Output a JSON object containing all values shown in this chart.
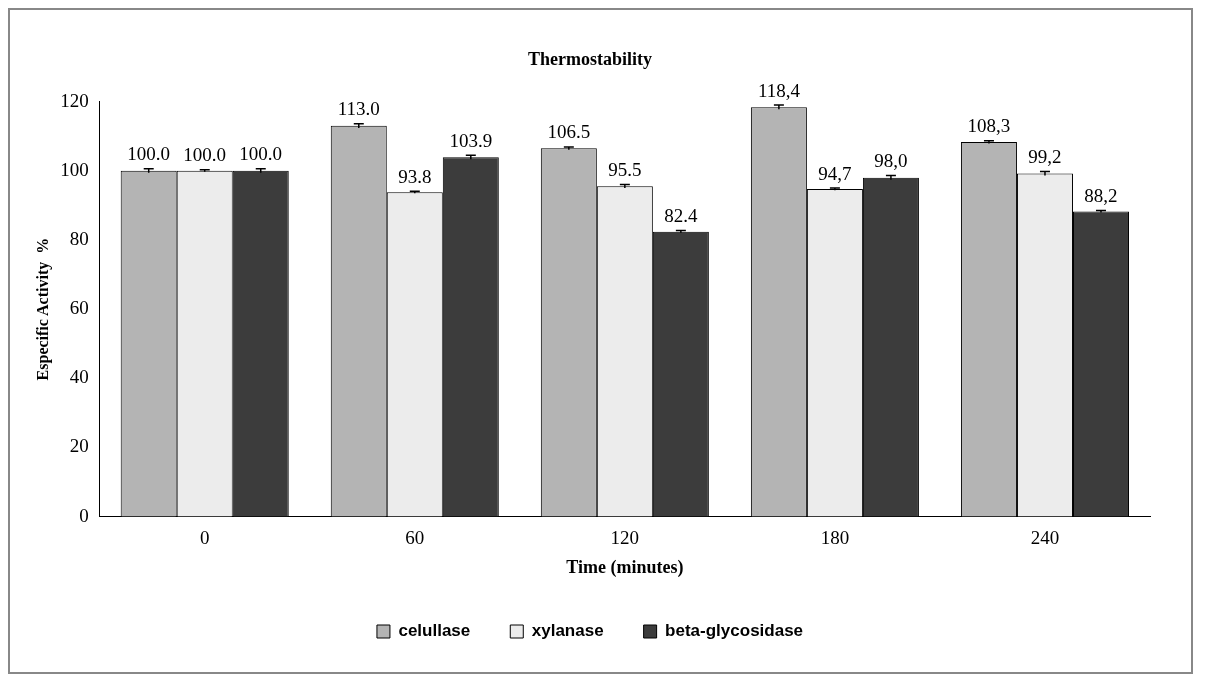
{
  "chart_data": {
    "type": "bar",
    "title": "Thermostability",
    "xlabel": "Time (minutes)",
    "ylabel": "Especific Activity  %",
    "categories": [
      "0",
      "60",
      "120",
      "180",
      "240"
    ],
    "series": [
      {
        "name": "celullase",
        "color": "#b4b4b4",
        "values": [
          100.0,
          113.0,
          106.5,
          118.4,
          108.3
        ],
        "value_labels": [
          "100.0",
          "113.0",
          "106.5",
          "118,4",
          "108,3"
        ],
        "errors": [
          0.6,
          0.6,
          0.4,
          0.6,
          0.4
        ]
      },
      {
        "name": "xylanase",
        "color": "#ececec",
        "values": [
          100.0,
          93.8,
          95.5,
          94.7,
          99.2
        ],
        "value_labels": [
          "100.0",
          "93.8",
          "95.5",
          "94,7",
          "99,2"
        ],
        "errors": [
          0.3,
          0.3,
          0.5,
          0.3,
          0.6
        ]
      },
      {
        "name": "beta-glycosidase",
        "color": "#3c3c3c",
        "values": [
          100.0,
          103.9,
          82.4,
          98.0,
          88.2
        ],
        "value_labels": [
          "100.0",
          "103.9",
          "82.4",
          "98,0",
          "88,2"
        ],
        "errors": [
          0.6,
          0.6,
          0.3,
          0.6,
          0.3
        ]
      }
    ],
    "ylim": [
      0,
      120
    ],
    "yticks": [
      0,
      20,
      40,
      60,
      80,
      100,
      120
    ],
    "grid": false,
    "legend": "bottom"
  }
}
